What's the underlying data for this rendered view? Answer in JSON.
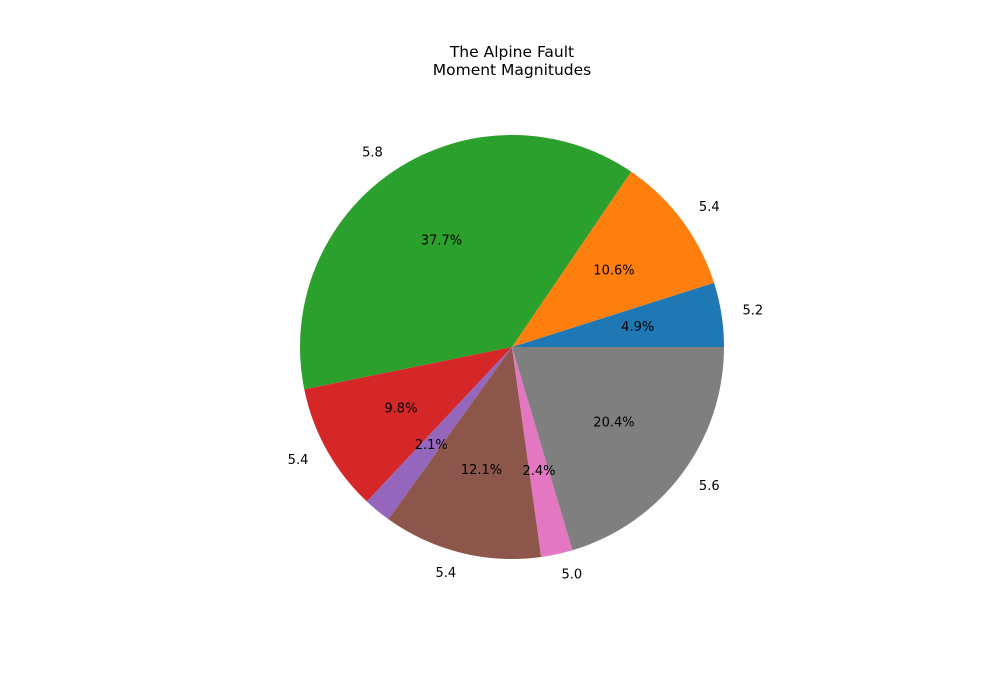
{
  "chart_data": {
    "type": "pie",
    "title_lines": [
      "The Alpine Fault",
      "Moment Magnitudes"
    ],
    "start_angle_deg": 0,
    "direction": "counterclockwise",
    "slices": [
      {
        "label": "5.2",
        "percent": 4.9,
        "pct_text": "4.9%",
        "color": "#1f77b4"
      },
      {
        "label": "5.4",
        "percent": 10.6,
        "pct_text": "10.6%",
        "color": "#ff7f0e"
      },
      {
        "label": "5.8",
        "percent": 37.7,
        "pct_text": "37.7%",
        "color": "#2ca02c"
      },
      {
        "label": "5.4",
        "percent": 9.8,
        "pct_text": "9.8%",
        "color": "#d62728"
      },
      {
        "label": "",
        "percent": 2.1,
        "pct_text": "2.1%",
        "color": "#9467bd"
      },
      {
        "label": "5.4",
        "percent": 12.1,
        "pct_text": "12.1%",
        "color": "#8c564b"
      },
      {
        "label": "5.0",
        "percent": 2.4,
        "pct_text": "2.4%",
        "color": "#e377c2"
      },
      {
        "label": "5.6",
        "percent": 20.4,
        "pct_text": "20.4%",
        "color": "#7f7f7f"
      }
    ]
  }
}
